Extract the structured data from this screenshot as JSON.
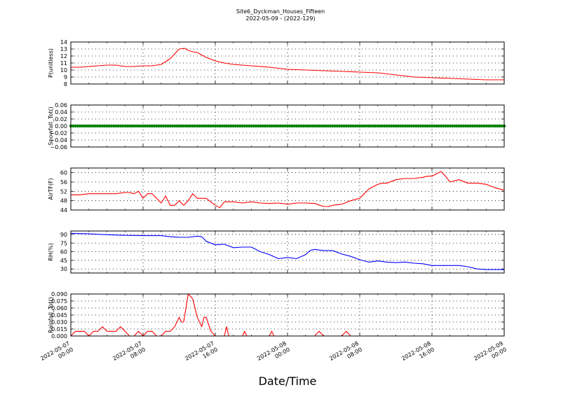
{
  "figure": {
    "title": "Site6_Dyckman_Houses_Fifteen",
    "subtitle": "2022-05-09 - (2022-129)",
    "xlabel": "Date/Time"
  },
  "chart_data": [
    {
      "type": "line",
      "ylabel": "P(unitless)",
      "color": "#ff0000",
      "grid": true,
      "xlim": [
        0,
        48
      ],
      "ylim": [
        8,
        14
      ],
      "yticks": [
        "8",
        "9",
        "10",
        "11",
        "12",
        "13",
        "14"
      ],
      "xticks": [
        "2022-05-07 00:00",
        "2022-05-07 08:00",
        "2022-05-07 16:00",
        "2022-05-08 00:00",
        "2022-05-08 08:00",
        "2022-05-08 16:00",
        "2022-05-09 00:00"
      ],
      "x": [
        0,
        1,
        2,
        3,
        4,
        5,
        6,
        7,
        8,
        9,
        10,
        11,
        12,
        12.6,
        13,
        13.5,
        14,
        15,
        16,
        17,
        18,
        20,
        22,
        24,
        26,
        28,
        30,
        32,
        34,
        36,
        38,
        40,
        42,
        44,
        46,
        48
      ],
      "y": [
        10.4,
        10.4,
        10.5,
        10.6,
        10.7,
        10.7,
        10.5,
        10.5,
        10.6,
        10.6,
        10.8,
        11.6,
        13.0,
        13.1,
        12.8,
        12.6,
        12.5,
        11.8,
        11.3,
        11.0,
        10.8,
        10.6,
        10.4,
        10.1,
        10.0,
        9.9,
        9.8,
        9.7,
        9.6,
        9.3,
        9.0,
        8.9,
        8.8,
        8.7,
        8.6,
        8.6
      ]
    },
    {
      "type": "scatter",
      "ylabel": "Snowfall_Tot()",
      "color": "#008000",
      "grid": true,
      "xlim": [
        0,
        48
      ],
      "ylim": [
        -0.06,
        0.06
      ],
      "yticks": [
        "−0.06",
        "−0.04",
        "−0.02",
        "0.00",
        "0.02",
        "0.04",
        "0.06"
      ],
      "xticks": [
        "2022-05-07 00:00",
        "2022-05-07 08:00",
        "2022-05-07 16:00",
        "2022-05-08 00:00",
        "2022-05-08 08:00",
        "2022-05-08 16:00",
        "2022-05-09 00:00"
      ],
      "x_start": 0,
      "x_step": 0.25,
      "y_constant": 0.0
    },
    {
      "type": "line",
      "ylabel": "AirTF(F)",
      "color": "#ff0000",
      "grid": true,
      "xlim": [
        0,
        48
      ],
      "ylim": [
        44,
        62
      ],
      "yticks": [
        "44",
        "48",
        "52",
        "56",
        "60"
      ],
      "xticks": [
        "2022-05-07 00:00",
        "2022-05-07 08:00",
        "2022-05-07 16:00",
        "2022-05-08 00:00",
        "2022-05-08 08:00",
        "2022-05-08 16:00",
        "2022-05-09 00:00"
      ],
      "x": [
        0,
        1,
        2,
        3,
        4,
        5,
        6,
        6.5,
        7,
        7.5,
        8,
        8.5,
        9,
        10,
        10.5,
        11,
        11.5,
        12,
        12.5,
        13,
        13.5,
        14,
        15,
        16,
        16.5,
        17,
        18,
        19,
        20,
        21,
        22,
        23,
        24,
        25,
        26,
        27,
        28,
        28.5,
        29,
        30,
        31,
        32,
        32.5,
        33,
        34,
        34.5,
        35,
        36,
        37,
        38,
        39,
        39.5,
        40,
        41,
        41.5,
        42,
        43,
        44,
        45,
        46,
        47,
        48
      ],
      "y": [
        50.5,
        50.5,
        51,
        51,
        51,
        51,
        51.5,
        51.5,
        51,
        52,
        49,
        51,
        51,
        47,
        50,
        46,
        46,
        48,
        46,
        48,
        51,
        49,
        49,
        46,
        45,
        47.5,
        47.5,
        47,
        47.5,
        47,
        46.8,
        47,
        46.5,
        47,
        47,
        46.8,
        45.5,
        45.5,
        46,
        46.5,
        48,
        49,
        51,
        53,
        55,
        55.5,
        55.5,
        57,
        57.5,
        57.5,
        58,
        58.5,
        58.5,
        60.5,
        58.5,
        56,
        57,
        55.5,
        55.5,
        55,
        53.5,
        52.5
      ]
    },
    {
      "type": "line",
      "ylabel": "RH(%)",
      "color": "#0000ff",
      "grid": true,
      "xlim": [
        0,
        48
      ],
      "ylim": [
        23,
        96
      ],
      "yticks": [
        "30",
        "45",
        "60",
        "75",
        "90"
      ],
      "xticks": [
        "2022-05-07 00:00",
        "2022-05-07 08:00",
        "2022-05-07 16:00",
        "2022-05-08 00:00",
        "2022-05-08 08:00",
        "2022-05-08 16:00",
        "2022-05-09 00:00"
      ],
      "x": [
        0,
        2,
        4,
        6,
        8,
        10,
        11,
        12,
        13,
        14,
        14.5,
        15,
        16,
        17,
        18,
        19,
        20,
        21,
        22,
        23,
        24,
        25,
        26,
        26.5,
        27,
        28,
        29,
        30,
        31,
        32,
        33,
        34,
        35,
        36,
        37,
        38,
        39,
        40,
        41,
        42,
        43,
        44,
        44.5,
        45,
        46,
        47,
        48
      ],
      "y": [
        92,
        91,
        89.5,
        88.5,
        88,
        88,
        86,
        85,
        85,
        87,
        86,
        78,
        72,
        73,
        67,
        68,
        68,
        60,
        55,
        48,
        50,
        48,
        55,
        62,
        64,
        62,
        62,
        56,
        52,
        46,
        42,
        44,
        42,
        41,
        42,
        40,
        39,
        36,
        36,
        36,
        36,
        34,
        32,
        30,
        29,
        29,
        29
      ]
    },
    {
      "type": "line",
      "ylabel": "Rainfall_Tot()",
      "color": "#ff0000",
      "grid": true,
      "xlim": [
        0,
        48
      ],
      "ylim": [
        0,
        0.09
      ],
      "yticks": [
        "0.000",
        "0.015",
        "0.030",
        "0.045",
        "0.060",
        "0.075",
        "0.090"
      ],
      "xticks": [
        "2022-05-07 00:00",
        "2022-05-07 08:00",
        "2022-05-07 16:00",
        "2022-05-08 00:00",
        "2022-05-08 08:00",
        "2022-05-08 16:00",
        "2022-05-09 00:00"
      ],
      "x": [
        0,
        0.5,
        1,
        1.5,
        2,
        2.5,
        3,
        3.5,
        4,
        4.5,
        5,
        5.5,
        6,
        6.5,
        7,
        7.5,
        8,
        8.5,
        9,
        9.5,
        10,
        10.5,
        11,
        11.5,
        12,
        12.25,
        12.5,
        13,
        13.5,
        14,
        14.25,
        14.5,
        14.75,
        15,
        15.5,
        16,
        16.5,
        17,
        17.25,
        17.5,
        18,
        19,
        19.25,
        19.5,
        20,
        21,
        22,
        22.25,
        22.5,
        23,
        27,
        27.5,
        28,
        30,
        30.5,
        31,
        35,
        48
      ],
      "y": [
        0,
        0.01,
        0.01,
        0.01,
        0,
        0.01,
        0.01,
        0.02,
        0.01,
        0.01,
        0.01,
        0.02,
        0.01,
        0,
        0,
        0.01,
        0,
        0.01,
        0.01,
        0,
        0,
        0.01,
        0.01,
        0.02,
        0.04,
        0.03,
        0.03,
        0.09,
        0.08,
        0.04,
        0.03,
        0.02,
        0.04,
        0.04,
        0.01,
        0,
        0,
        0,
        0.02,
        0,
        0,
        0,
        0.01,
        0,
        0,
        0,
        0,
        0.01,
        0,
        0,
        0,
        0.01,
        0,
        0,
        0.01,
        0,
        0,
        0
      ]
    }
  ]
}
